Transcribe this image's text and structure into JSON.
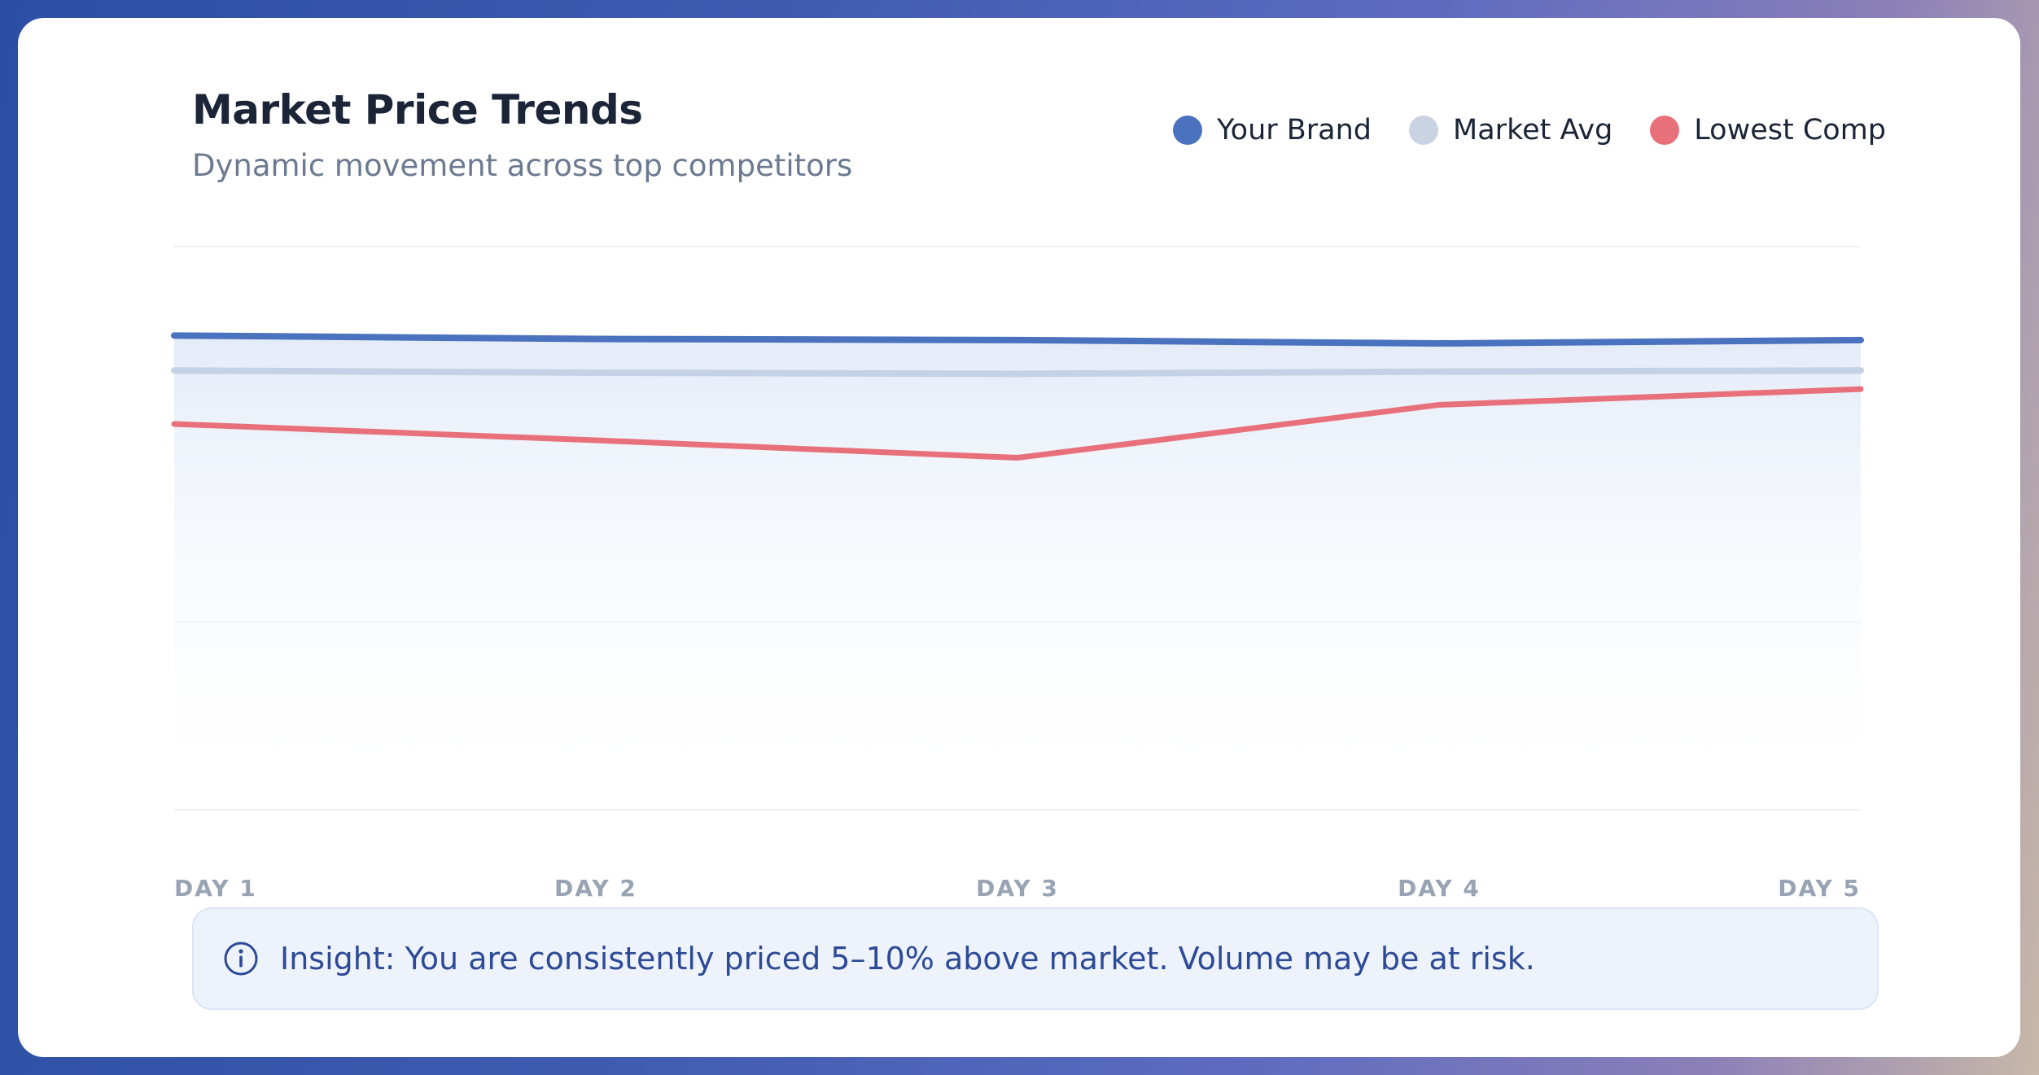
{
  "header": {
    "title": "Market Price Trends",
    "subtitle": "Dynamic movement across top competitors"
  },
  "legend": [
    {
      "label": "Your Brand",
      "color": "#4a72be"
    },
    {
      "label": "Market Avg",
      "color": "#cad3e1"
    },
    {
      "label": "Lowest Comp",
      "color": "#e8707a"
    }
  ],
  "insight": {
    "icon": "info-icon",
    "text": "Insight: You are consistently priced 5–10% above market. Volume may be at risk."
  },
  "chart_data": {
    "type": "line",
    "title": "Market Price Trends",
    "subtitle": "Dynamic movement across top competitors",
    "categories": [
      "DAY 1",
      "DAY 2",
      "DAY 3",
      "DAY 4",
      "DAY 5"
    ],
    "ylim": [
      0,
      100
    ],
    "grid": true,
    "legend_position": "top-right",
    "series": [
      {
        "name": "Your Brand",
        "color": "#4a72be",
        "values": [
          84.2,
          83.6,
          83.4,
          82.8,
          83.4
        ]
      },
      {
        "name": "Market Avg",
        "color": "#c5d1e6",
        "values": [
          78.0,
          77.6,
          77.4,
          77.8,
          78.0
        ]
      },
      {
        "name": "Lowest Comp",
        "color": "#e8707a",
        "values": [
          68.5,
          65.6,
          62.5,
          71.9,
          74.7
        ]
      }
    ]
  }
}
